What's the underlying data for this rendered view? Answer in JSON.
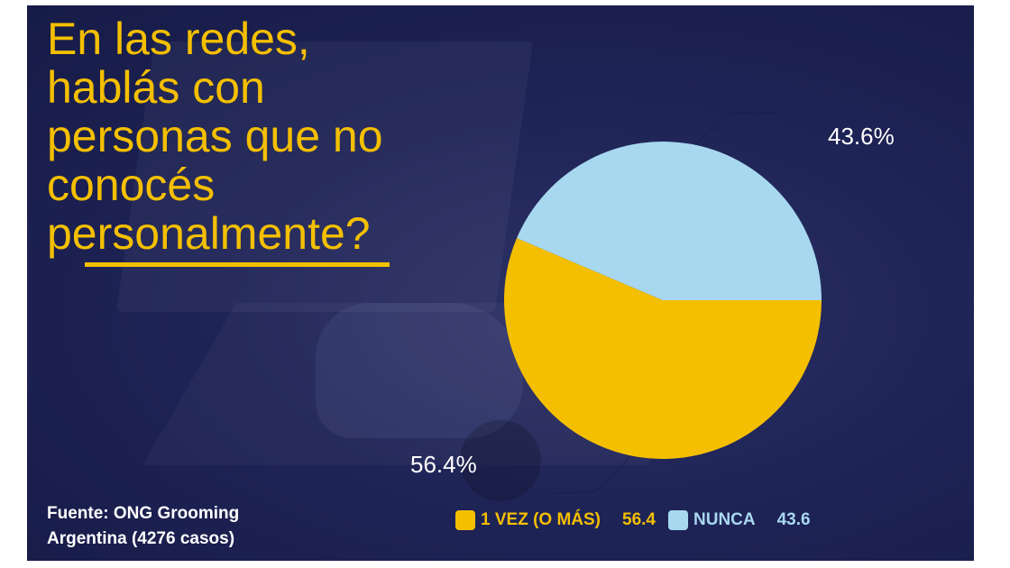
{
  "title": "En las redes,\nhablás con\npersonas que no\nconocés\npersonalmente?",
  "source": "Fuente: ONG Grooming Argentina (4276 casos)",
  "colors": {
    "accent": "#f4bf00",
    "vez": "#f4bf00",
    "nunca": "#a8d8ef",
    "background": "#1f2457"
  },
  "chart_data": {
    "type": "pie",
    "slices": [
      {
        "label": "1 VEZ (O MÁS)",
        "value": 56.4,
        "display": "56.4%",
        "legend_value": "56.4",
        "color": "#f4bf00"
      },
      {
        "label": "NUNCA",
        "value": 43.6,
        "display": "43.6%",
        "legend_value": "43.6",
        "color": "#a8d8ef"
      }
    ],
    "legend_position": "bottom"
  }
}
